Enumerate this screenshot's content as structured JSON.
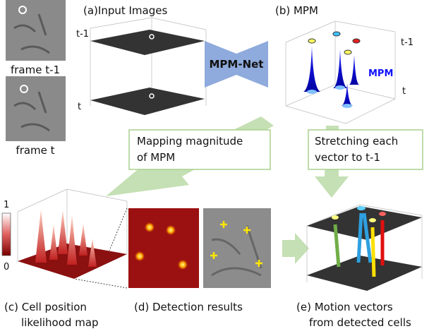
{
  "frames": [
    {
      "label": "frame t-1"
    },
    {
      "label": "frame t"
    }
  ],
  "input_images": {
    "title": "(a)Input Images",
    "layers": [
      "t-1",
      "t"
    ]
  },
  "network": {
    "label": "MPM-Net"
  },
  "mpm": {
    "title": "(b) MPM",
    "layers": [
      "t-1",
      "t"
    ],
    "legend": "MPM"
  },
  "notes": [
    {
      "lines": [
        "Mapping magnitude",
        "of MPM"
      ]
    },
    {
      "lines": [
        "Stretching each",
        "vector to t-1"
      ]
    }
  ],
  "likelihood": {
    "colorbar": [
      "1",
      "0"
    ],
    "caption": [
      "(c) Cell position",
      "likelihood map"
    ]
  },
  "detection": {
    "caption": [
      "(d) Detection results"
    ]
  },
  "motion": {
    "caption": [
      "(e) Motion vectors",
      "from detected cells"
    ]
  }
}
